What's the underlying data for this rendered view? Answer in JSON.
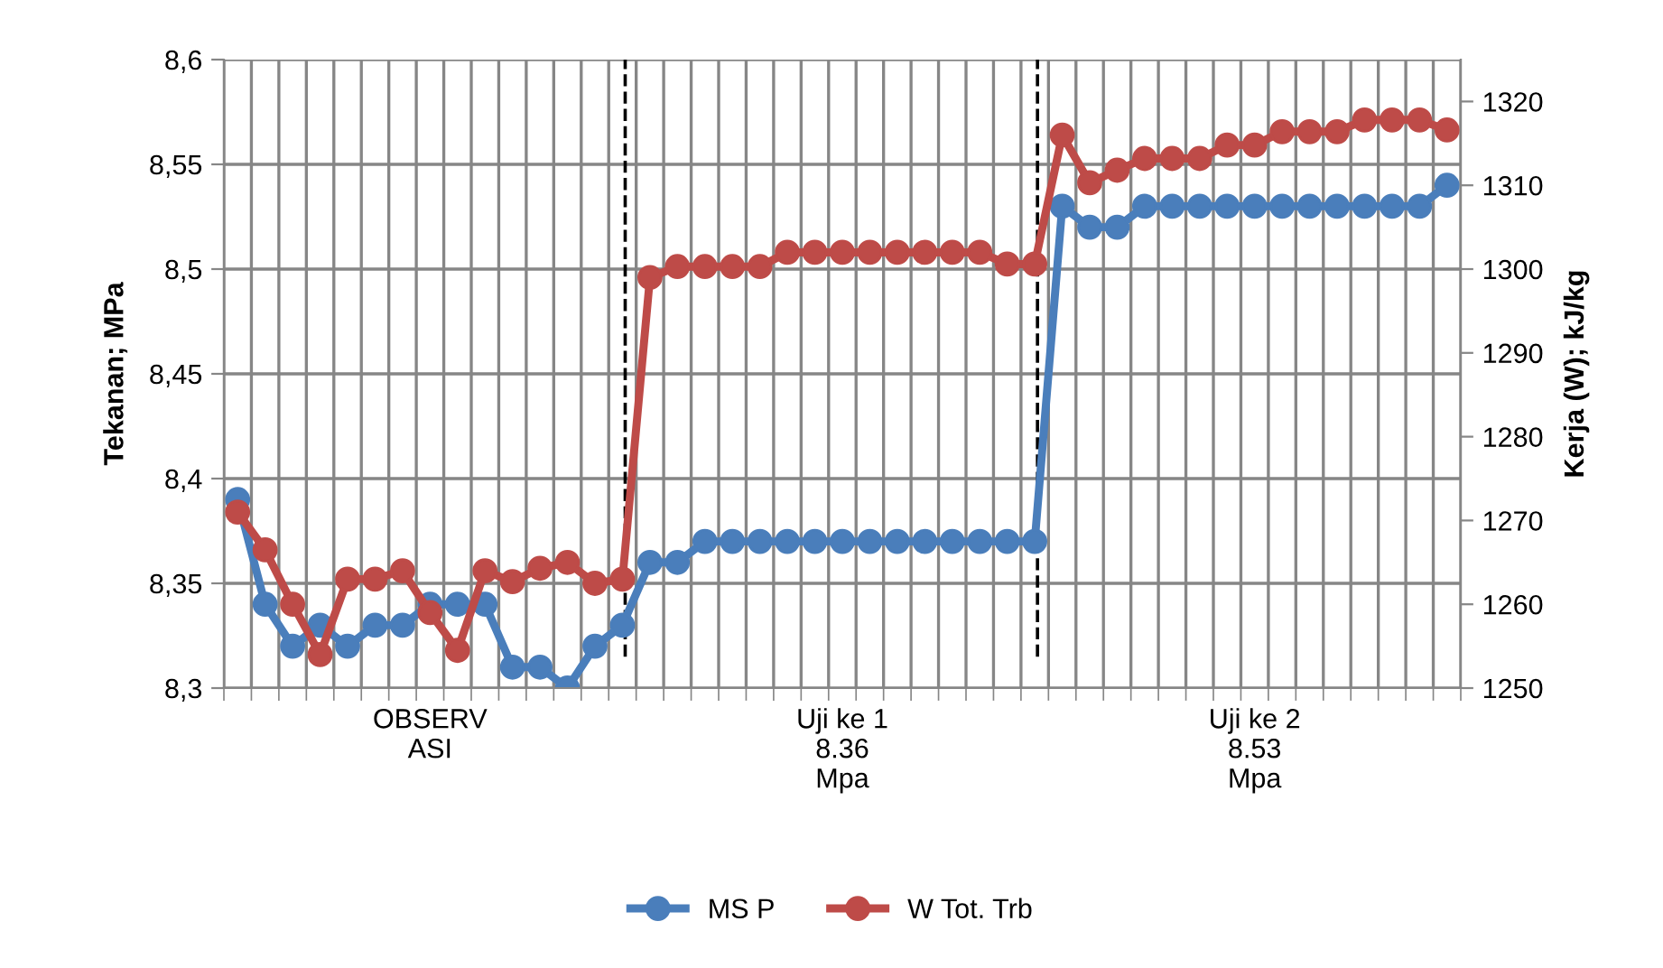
{
  "chart_data": {
    "type": "line",
    "categories": [
      null,
      null,
      null,
      null,
      null,
      null,
      null,
      "OBSERV\nASI",
      null,
      null,
      null,
      null,
      null,
      null,
      null,
      null,
      null,
      null,
      null,
      null,
      null,
      null,
      "Uji ke 1\n8.36\nMpa",
      null,
      null,
      null,
      null,
      null,
      null,
      null,
      null,
      null,
      null,
      null,
      null,
      null,
      null,
      "Uji ke 2\n8.53\nMpa",
      null,
      null,
      null,
      null,
      null,
      null,
      null
    ],
    "ylabel": "Tekanan; MPa",
    "y2label": "Kerja (W); kJ/kg",
    "ylim": [
      8.3,
      8.6
    ],
    "yticks": [
      {
        "value": 8.3,
        "label": "8,3"
      },
      {
        "value": 8.35,
        "label": "8,35"
      },
      {
        "value": 8.4,
        "label": "8,4"
      },
      {
        "value": 8.45,
        "label": "8,45"
      },
      {
        "value": 8.5,
        "label": "8,5"
      },
      {
        "value": 8.55,
        "label": "8,55"
      },
      {
        "value": 8.6,
        "label": "8,6"
      }
    ],
    "y2lim": [
      1250,
      1325
    ],
    "y2ticks": [
      1250,
      1260,
      1270,
      1280,
      1290,
      1300,
      1310,
      1320
    ],
    "grid": true,
    "legend": "bottom",
    "marker": "circle",
    "series": [
      {
        "name": "MS P",
        "color": "#4a7ebb",
        "values": [
          8.39,
          8.34,
          8.32,
          8.33,
          8.32,
          8.33,
          8.33,
          8.34,
          8.34,
          8.34,
          8.31,
          8.31,
          8.3,
          8.32,
          8.33,
          8.36,
          8.36,
          8.37,
          8.37,
          8.37,
          8.37,
          8.37,
          8.37,
          8.37,
          8.37,
          8.37,
          8.37,
          8.37,
          8.37,
          8.37,
          8.53,
          8.52,
          8.52,
          8.53,
          8.53,
          8.53,
          8.53,
          8.53,
          8.53,
          8.53,
          8.53,
          8.53,
          8.53,
          8.53,
          8.54
        ]
      },
      {
        "name": "W Tot. Trb",
        "color": "#be4b48",
        "axis": "y2",
        "values": [
          1271,
          1266.5,
          1260,
          1254,
          1263,
          1263,
          1264,
          1259,
          1254.5,
          1264,
          1262.7,
          1264.3,
          1265,
          1262.5,
          1263,
          1299,
          1300.3,
          1300.3,
          1300.3,
          1300.3,
          1302,
          1302,
          1302,
          1302,
          1302,
          1302,
          1302,
          1302,
          1300.6,
          1300.6,
          1316,
          1310.3,
          1311.8,
          1313.2,
          1313.2,
          1313.2,
          1314.8,
          1314.8,
          1316.4,
          1316.4,
          1316.4,
          1317.8,
          1317.8,
          1317.8,
          1316.6
        ]
      }
    ]
  }
}
